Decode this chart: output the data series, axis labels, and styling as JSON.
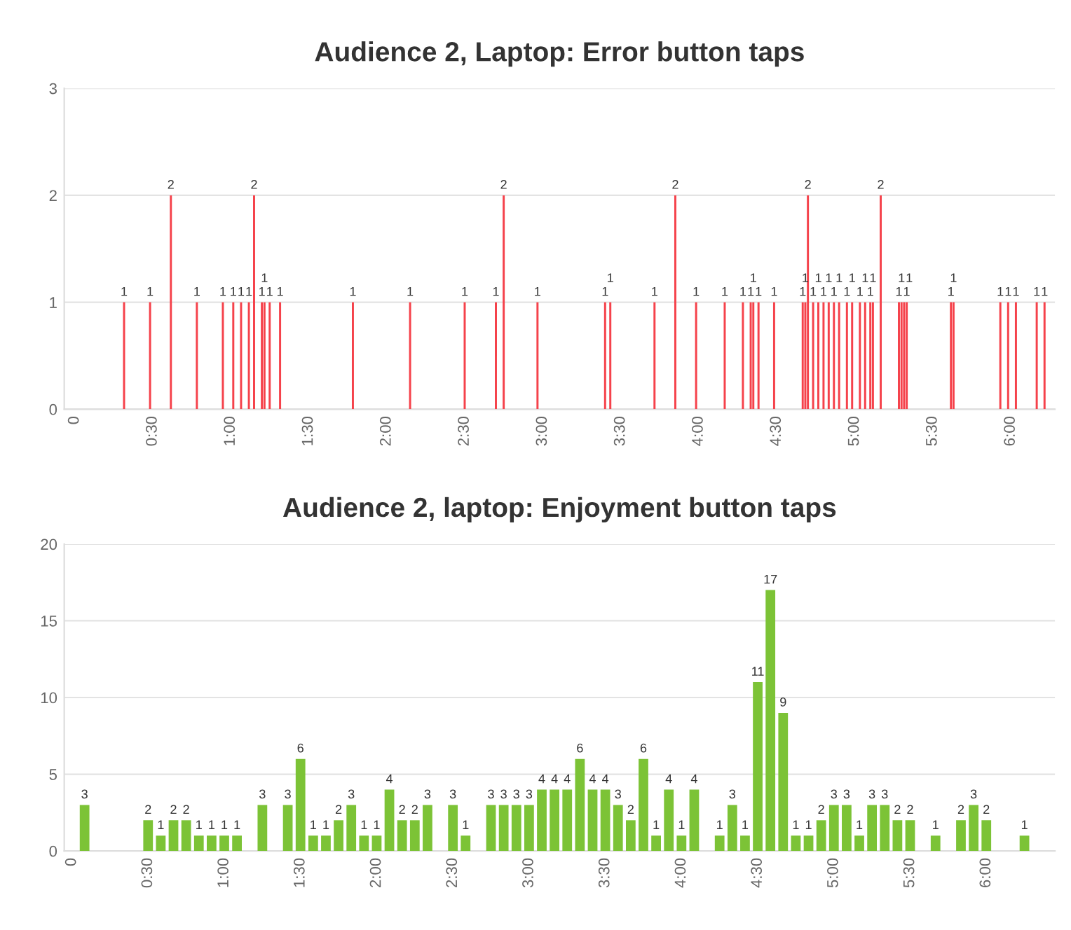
{
  "chart_data": [
    {
      "type": "bar",
      "title": "Audience 2, Laptop: Error button taps",
      "color": "#f5424b",
      "grid": "y",
      "data_labels": true,
      "x": [
        19,
        29,
        37,
        47,
        57,
        61,
        64,
        67,
        69,
        72,
        73,
        75,
        79,
        107,
        129,
        150,
        162,
        165,
        178,
        204,
        206,
        223,
        231,
        239,
        250,
        257,
        260,
        261,
        263,
        269,
        280,
        281,
        282,
        284,
        286,
        288,
        290,
        292,
        294,
        297,
        299,
        302,
        304,
        306,
        307,
        310,
        317,
        318,
        319,
        320,
        337,
        338,
        356,
        359,
        362,
        370,
        373
      ],
      "values": [
        1,
        1,
        2,
        1,
        1,
        1,
        1,
        1,
        2,
        1,
        1,
        1,
        1,
        1,
        1,
        1,
        1,
        2,
        1,
        1,
        1,
        1,
        2,
        1,
        1,
        1,
        1,
        1,
        1,
        1,
        1,
        1,
        2,
        1,
        1,
        1,
        1,
        1,
        1,
        1,
        1,
        1,
        1,
        1,
        1,
        2,
        1,
        1,
        1,
        1,
        1,
        1,
        1,
        1,
        1,
        1,
        1
      ],
      "xlim": [
        -4,
        377
      ],
      "ylim": [
        0,
        3
      ],
      "yticks": [
        0,
        1,
        2,
        3
      ],
      "xticks": [
        {
          "value": 0,
          "label": "0"
        },
        {
          "value": 30,
          "label": "0:30"
        },
        {
          "value": 60,
          "label": "1:00"
        },
        {
          "value": 90,
          "label": "1:30"
        },
        {
          "value": 120,
          "label": "2:00"
        },
        {
          "value": 150,
          "label": "2:30"
        },
        {
          "value": 180,
          "label": "3:00"
        },
        {
          "value": 210,
          "label": "3:30"
        },
        {
          "value": 240,
          "label": "4:00"
        },
        {
          "value": 270,
          "label": "4:30"
        },
        {
          "value": 300,
          "label": "5:00"
        },
        {
          "value": 330,
          "label": "5:30"
        },
        {
          "value": 360,
          "label": "6:00"
        }
      ]
    },
    {
      "type": "bar",
      "title": "Audience 2, laptop: Enjoyment button taps",
      "color": "#7cc336",
      "grid": "y",
      "data_labels": true,
      "x": [
        5,
        30,
        35,
        40,
        45,
        50,
        55,
        60,
        65,
        75,
        85,
        90,
        95,
        100,
        105,
        110,
        115,
        120,
        125,
        130,
        135,
        140,
        150,
        155,
        165,
        170,
        175,
        180,
        185,
        190,
        195,
        200,
        205,
        210,
        215,
        220,
        225,
        230,
        235,
        240,
        245,
        255,
        260,
        265,
        270,
        275,
        280,
        285,
        290,
        295,
        300,
        305,
        310,
        315,
        320,
        325,
        330,
        340,
        350,
        355,
        360,
        375
      ],
      "values": [
        3,
        2,
        1,
        2,
        2,
        1,
        1,
        1,
        1,
        3,
        3,
        6,
        1,
        1,
        2,
        3,
        1,
        1,
        4,
        2,
        2,
        3,
        3,
        1,
        3,
        3,
        3,
        3,
        4,
        4,
        4,
        6,
        4,
        4,
        3,
        2,
        6,
        1,
        4,
        1,
        4,
        1,
        3,
        1,
        11,
        17,
        9,
        1,
        1,
        2,
        3,
        3,
        1,
        3,
        3,
        2,
        2,
        1,
        2,
        3,
        2,
        1
      ],
      "xlim": [
        -3,
        387
      ],
      "ylim": [
        0,
        20
      ],
      "yticks": [
        0,
        5,
        10,
        15,
        20
      ],
      "xticks": [
        {
          "value": 0,
          "label": "0"
        },
        {
          "value": 30,
          "label": "0:30"
        },
        {
          "value": 60,
          "label": "1:00"
        },
        {
          "value": 90,
          "label": "1:30"
        },
        {
          "value": 120,
          "label": "2:00"
        },
        {
          "value": 150,
          "label": "2:30"
        },
        {
          "value": 180,
          "label": "3:00"
        },
        {
          "value": 210,
          "label": "3:30"
        },
        {
          "value": 240,
          "label": "4:00"
        },
        {
          "value": 270,
          "label": "4:30"
        },
        {
          "value": 300,
          "label": "5:00"
        },
        {
          "value": 330,
          "label": "5:30"
        },
        {
          "value": 360,
          "label": "6:00"
        }
      ]
    }
  ]
}
